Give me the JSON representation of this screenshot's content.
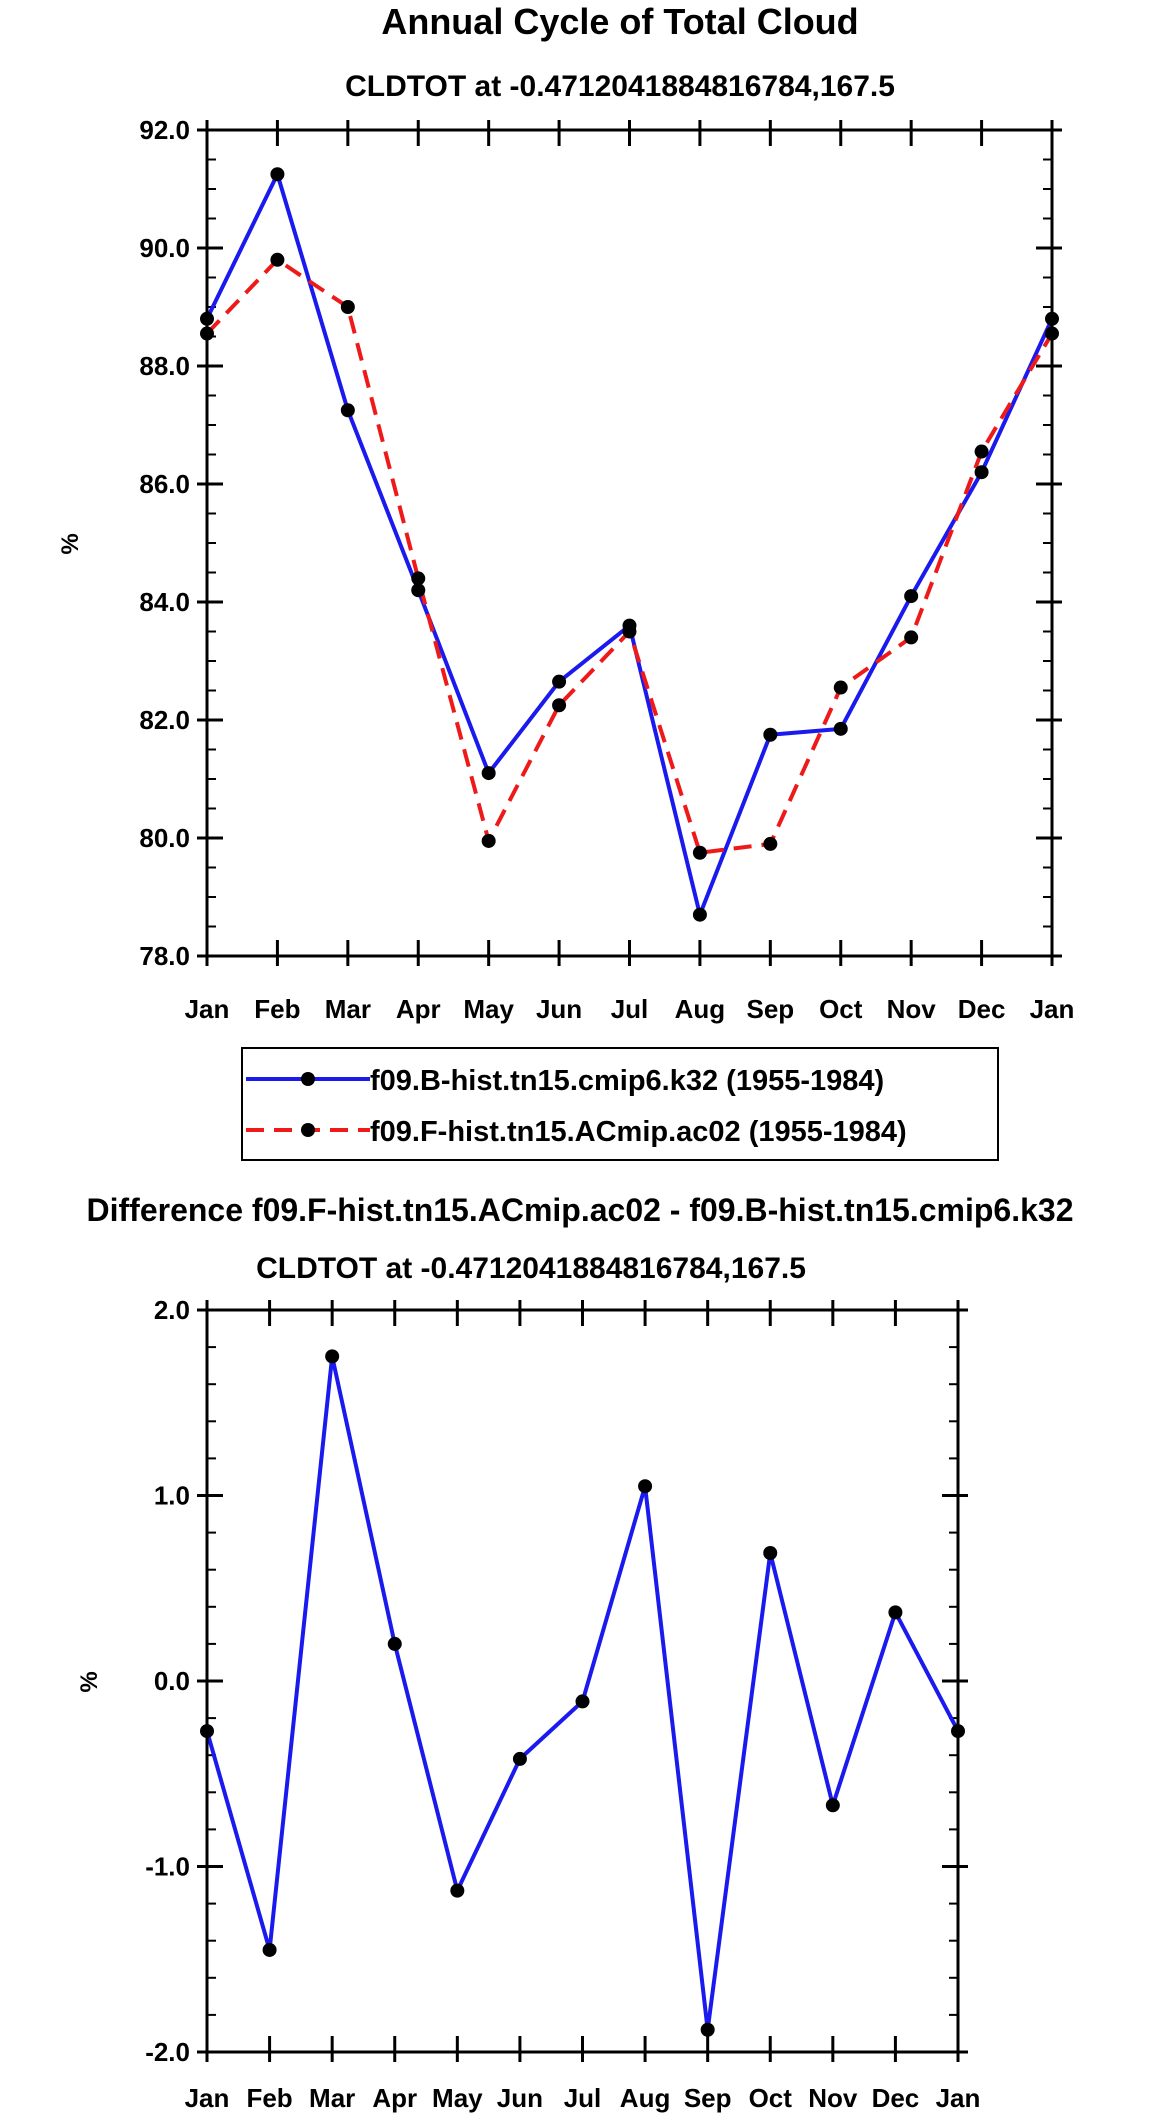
{
  "chart_data": [
    {
      "type": "line",
      "title": "Annual Cycle of Total Cloud",
      "subtitle": "CLDTOT at -0.4712041884816784,167.5",
      "ylabel": "%",
      "xlabel": "",
      "categories": [
        "Jan",
        "Feb",
        "Mar",
        "Apr",
        "May",
        "Jun",
        "Jul",
        "Aug",
        "Sep",
        "Oct",
        "Nov",
        "Dec",
        "Jan"
      ],
      "ylim": [
        78.0,
        92.0
      ],
      "yticks": [
        "78.0",
        "80.0",
        "82.0",
        "84.0",
        "86.0",
        "88.0",
        "90.0",
        "92.0"
      ],
      "ytick_values": [
        78,
        80,
        82,
        84,
        86,
        88,
        90,
        92
      ],
      "grid": false,
      "legend": "below",
      "series": [
        {
          "name": "f09.B-hist.tn15.cmip6.k32 (1955-1984)",
          "color": "#1a1aee",
          "dash": "solid",
          "values": [
            88.8,
            91.25,
            87.25,
            84.2,
            81.1,
            82.65,
            83.6,
            78.7,
            81.75,
            81.85,
            84.1,
            86.2,
            88.8
          ]
        },
        {
          "name": "f09.F-hist.tn15.ACmip.ac02 (1955-1984)",
          "color": "#ee1a1a",
          "dash": "dashed",
          "values": [
            88.55,
            89.8,
            89.0,
            84.4,
            79.95,
            82.25,
            83.5,
            79.75,
            79.9,
            82.55,
            83.4,
            86.55,
            88.55
          ]
        }
      ]
    },
    {
      "type": "line",
      "title": "Difference f09.F-hist.tn15.ACmip.ac02 - f09.B-hist.tn15.cmip6.k32",
      "subtitle": "CLDTOT at -0.4712041884816784,167.5",
      "ylabel": "%",
      "xlabel": "",
      "categories": [
        "Jan",
        "Feb",
        "Mar",
        "Apr",
        "May",
        "Jun",
        "Jul",
        "Aug",
        "Sep",
        "Oct",
        "Nov",
        "Dec",
        "Jan"
      ],
      "ylim": [
        -2.0,
        2.0
      ],
      "yticks": [
        "-2.0",
        "-1.0",
        "0.0",
        "1.0",
        "2.0"
      ],
      "ytick_values": [
        -2,
        -1,
        0,
        1,
        2
      ],
      "grid": false,
      "series": [
        {
          "name": "Difference",
          "color": "#1a1aee",
          "dash": "solid",
          "values": [
            -0.27,
            -1.45,
            1.75,
            0.2,
            -1.13,
            -0.42,
            -0.11,
            1.05,
            -1.88,
            0.69,
            -0.67,
            0.37,
            -0.27
          ]
        }
      ]
    }
  ]
}
